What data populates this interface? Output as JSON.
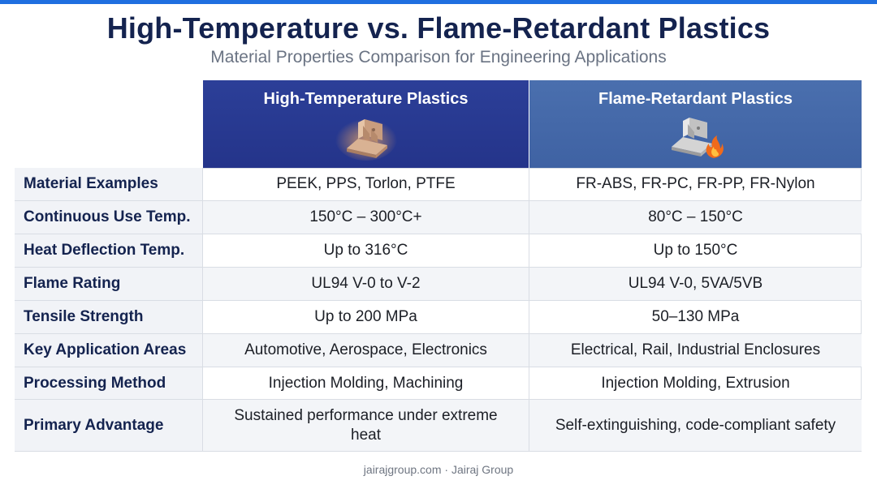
{
  "header": {
    "title": "High-Temperature vs. Flame-Retardant Plastics",
    "subtitle": "Material Properties Comparison for Engineering Applications"
  },
  "columns": {
    "high_temp": {
      "label": "High-Temperature Plastics",
      "icon": "plastic-bracket-icon"
    },
    "flame_retardant": {
      "label": "Flame-Retardant Plastics",
      "icon": "bracket-with-flame-icon"
    }
  },
  "rows": [
    {
      "property": "Material Examples",
      "high_temp": "PEEK, PPS, Torlon, PTFE",
      "flame_retardant": "FR-ABS, FR-PC, FR-PP, FR-Nylon"
    },
    {
      "property": "Continuous Use Temp.",
      "high_temp": "150°C – 300°C+",
      "flame_retardant": "80°C – 150°C"
    },
    {
      "property": "Heat Deflection Temp.",
      "high_temp": "Up to 316°C",
      "flame_retardant": "Up to 150°C"
    },
    {
      "property": "Flame Rating",
      "high_temp": "UL94 V-0 to V-2",
      "flame_retardant": "UL94 V-0, 5VA/5VB"
    },
    {
      "property": "Tensile Strength",
      "high_temp": "Up to 200 MPa",
      "flame_retardant": "50–130 MPa"
    },
    {
      "property": "Key Application Areas",
      "high_temp": "Automotive, Aerospace, Electronics",
      "flame_retardant": "Electrical, Rail, Industrial Enclosures"
    },
    {
      "property": "Processing Method",
      "high_temp": "Injection Molding, Machining",
      "flame_retardant": "Injection Molding, Extrusion"
    },
    {
      "property": "Primary Advantage",
      "high_temp": "Sustained performance under extreme heat",
      "flame_retardant": "Self-extinguishing, code-compliant safety"
    }
  ],
  "footer": {
    "text": "jairajgroup.com · Jairaj Group"
  },
  "colors": {
    "title": "#14234f",
    "accent_bar": "#1f6fe0",
    "high_temp_header": "#2a3c95",
    "flame_retardant_header": "#4568a8"
  }
}
